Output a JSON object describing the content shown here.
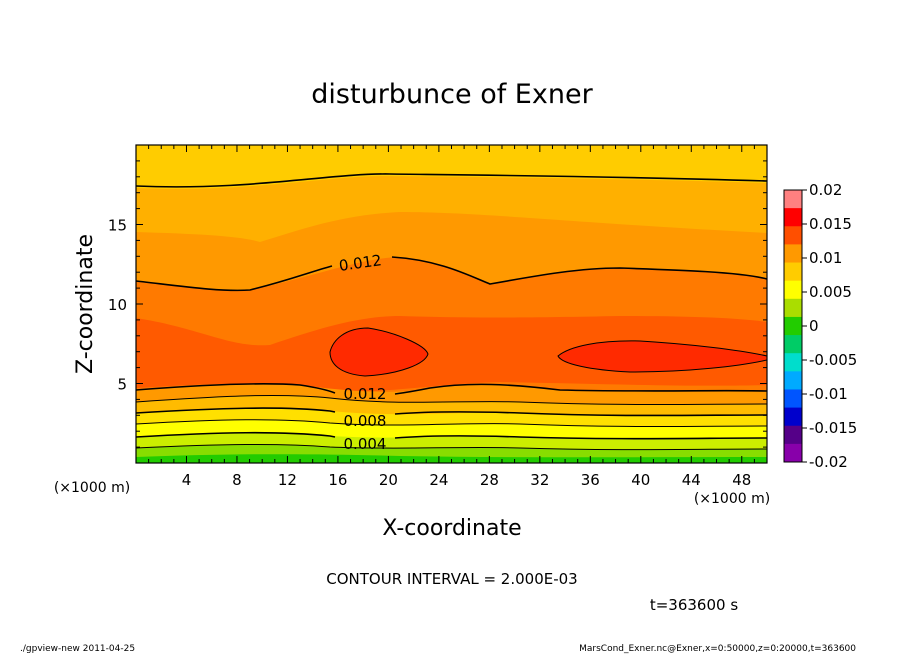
{
  "chart_data": {
    "type": "heatmap",
    "title": "disturbunce of Exner",
    "xlabel": "X-coordinate",
    "ylabel": "Z-coordinate",
    "x_unit": "(×1000 m)",
    "y_unit": "(×1000 m)",
    "xlim": [
      0,
      50
    ],
    "ylim": [
      0,
      20
    ],
    "x_ticks": [
      "4",
      "8",
      "12",
      "16",
      "20",
      "24",
      "28",
      "32",
      "36",
      "40",
      "44",
      "48"
    ],
    "y_ticks": [
      "5",
      "10",
      "15"
    ],
    "colorbar": {
      "ticks": [
        "0.02",
        "0.015",
        "0.01",
        "0.005",
        "0",
        "-0.005",
        "-0.01",
        "-0.015",
        "-0.02"
      ],
      "range": [
        -0.02,
        0.02
      ],
      "colors": [
        "#ff8080",
        "#ff0000",
        "#ff4f00",
        "#ff9900",
        "#ffcc00",
        "#ffff00",
        "#aadd00",
        "#22cc00",
        "#00cc66",
        "#00ddcc",
        "#00aaff",
        "#0055ff",
        "#0000cc",
        "#550088",
        "#8800aa"
      ]
    },
    "contour_labels": [
      "0.012",
      "0.012",
      "0.008",
      "0.004"
    ],
    "contour_interval_text": "CONTOUR INTERVAL = 2.000E-03",
    "time_text": "t=363600 s",
    "footer_left": "./gpview-new   2011-04-25",
    "footer_right": "MarsCond_Exner.nc@Exner,x=0:50000,z=0:20000,t=363600"
  }
}
